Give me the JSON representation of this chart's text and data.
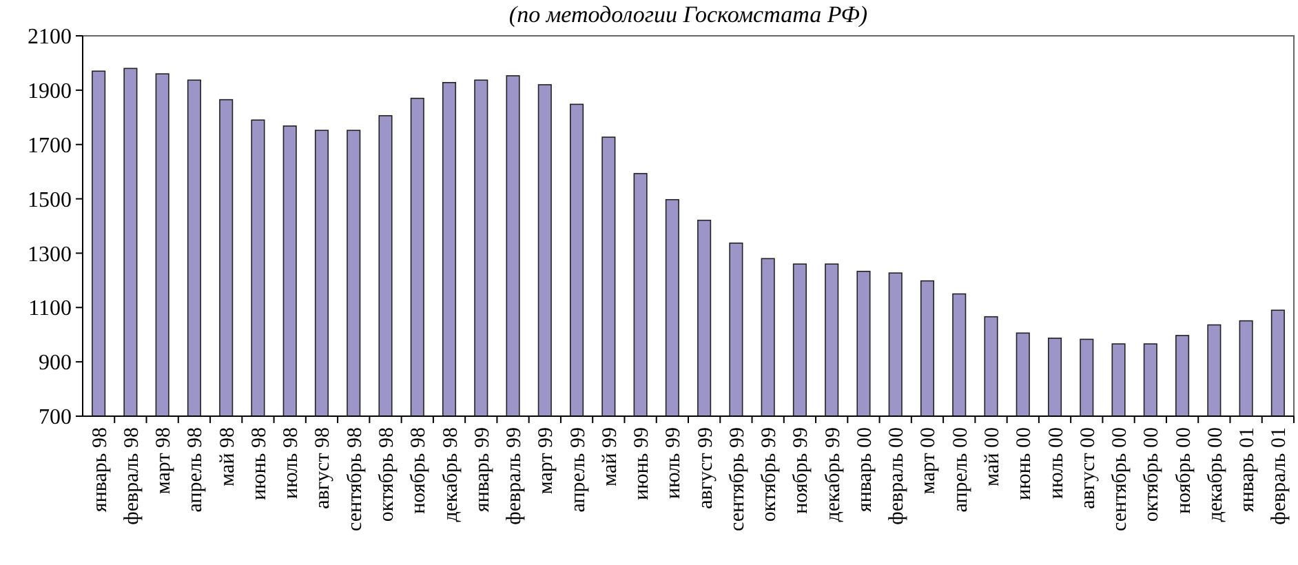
{
  "chart_data": {
    "type": "bar",
    "title": "(по методологии Госкомстата РФ)",
    "categories": [
      "январь 98",
      "февраль 98",
      "март 98",
      "апрель 98",
      "май 98",
      "июнь 98",
      "июль 98",
      "август 98",
      "сентябрь 98",
      "октябрь 98",
      "ноябрь 98",
      "декабрь 98",
      "январь 99",
      "февраль 99",
      "март 99",
      "апрель 99",
      "май 99",
      "июнь 99",
      "июль 99",
      "август 99",
      "сентябрь 99",
      "октябрь 99",
      "ноябрь 99",
      "декабрь 99",
      "январь 00",
      "февраль 00",
      "март 00",
      "апрель 00",
      "май 00",
      "июнь 00",
      "июль 00",
      "август 00",
      "сентябрь 00",
      "октябрь 00",
      "ноябрь 00",
      "декабрь 00",
      "январь 01",
      "февраль 01"
    ],
    "values": [
      1970,
      1980,
      1960,
      1937,
      1865,
      1790,
      1768,
      1752,
      1752,
      1806,
      1870,
      1928,
      1937,
      1953,
      1920,
      1848,
      1727,
      1593,
      1497,
      1421,
      1337,
      1280,
      1260,
      1260,
      1233,
      1227,
      1198,
      1150,
      1066,
      1006,
      987,
      983,
      966,
      966,
      997,
      1036,
      1051,
      1090
    ],
    "color": "#9c95c8",
    "ylim": [
      700,
      2100
    ],
    "yticks": [
      700,
      900,
      1100,
      1300,
      1500,
      1700,
      1900,
      2100
    ],
    "grid": false
  }
}
